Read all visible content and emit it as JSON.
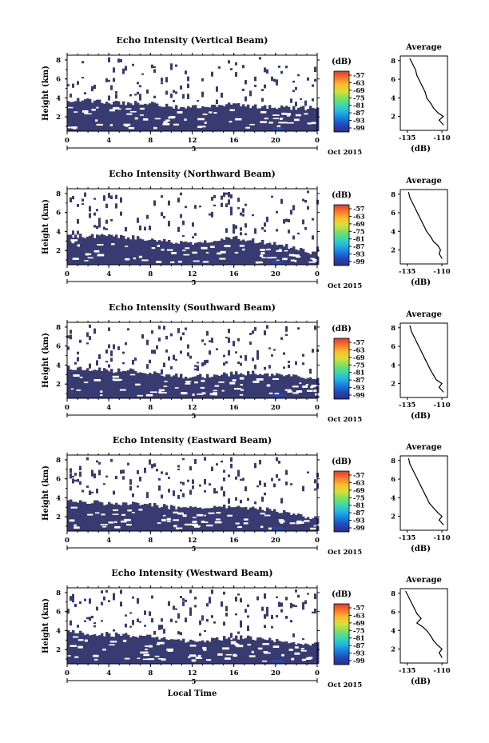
{
  "chart_data": [
    {
      "type": "heatmap",
      "title": "Echo Intensity (Vertical Beam)",
      "ylabel": "Height (km)",
      "x_ticks": [
        "0",
        "4",
        "8",
        "12",
        "16",
        "20",
        "0"
      ],
      "y_ticks": [
        "2",
        "4",
        "6",
        "8"
      ],
      "xlim": [
        0,
        24
      ],
      "ylim": [
        0.5,
        8.5
      ],
      "date_tick": "5",
      "date_label": "Oct 2015",
      "colorbar": {
        "unit": "(dB)",
        "ticks": [
          "-57",
          "-63",
          "-69",
          "-75",
          "-81",
          "-87",
          "-93",
          "-99"
        ]
      },
      "echo_top_km": [
        [
          0,
          3.8
        ],
        [
          2,
          3.7
        ],
        [
          4,
          3.5
        ],
        [
          6,
          3.5
        ],
        [
          8,
          3.4
        ],
        [
          10,
          3.1
        ],
        [
          12,
          3.0
        ],
        [
          14,
          3.2
        ],
        [
          16,
          3.3
        ],
        [
          18,
          3.1
        ],
        [
          20,
          3.0
        ],
        [
          22,
          2.9
        ],
        [
          24,
          3.0
        ]
      ],
      "average_profile": {
        "title": "Average",
        "xlabel": "(dB)",
        "x_ticks": [
          "-135",
          "-110"
        ],
        "y_ticks": [
          "2",
          "4",
          "6",
          "8"
        ],
        "xlim": [
          -140,
          -106
        ],
        "ylim": [
          0.5,
          8.5
        ],
        "points": [
          [
            -133,
            8.2
          ],
          [
            -131,
            7.6
          ],
          [
            -129,
            7.0
          ],
          [
            -128,
            6.4
          ],
          [
            -126,
            5.8
          ],
          [
            -124,
            5.2
          ],
          [
            -122,
            4.6
          ],
          [
            -121,
            4.0
          ],
          [
            -118,
            3.4
          ],
          [
            -116,
            2.9
          ],
          [
            -113,
            2.4
          ],
          [
            -109,
            2.0
          ],
          [
            -112,
            1.6
          ],
          [
            -109,
            1.1
          ]
        ]
      }
    },
    {
      "type": "heatmap",
      "title": "Echo Intensity (Northward Beam)",
      "ylabel": "Height (km)",
      "x_ticks": [
        "0",
        "4",
        "8",
        "12",
        "16",
        "20",
        "0"
      ],
      "y_ticks": [
        "2",
        "4",
        "6",
        "8"
      ],
      "xlim": [
        0,
        24
      ],
      "ylim": [
        0.5,
        8.5
      ],
      "date_tick": "5",
      "date_label": "Oct 2015",
      "colorbar": {
        "unit": "(dB)",
        "ticks": [
          "-57",
          "-63",
          "-69",
          "-75",
          "-81",
          "-87",
          "-93",
          "-99"
        ]
      },
      "echo_top_km": [
        [
          0,
          3.6
        ],
        [
          2,
          3.5
        ],
        [
          4,
          3.5
        ],
        [
          6,
          3.4
        ],
        [
          8,
          3.2
        ],
        [
          10,
          2.9
        ],
        [
          12,
          2.8
        ],
        [
          14,
          3.1
        ],
        [
          16,
          3.3
        ],
        [
          18,
          3.0
        ],
        [
          20,
          2.7
        ],
        [
          22,
          2.2
        ],
        [
          24,
          1.6
        ]
      ],
      "average_profile": {
        "title": "Average",
        "xlabel": "(dB)",
        "x_ticks": [
          "-135",
          "-110"
        ],
        "y_ticks": [
          "2",
          "4",
          "6",
          "8"
        ],
        "xlim": [
          -140,
          -106
        ],
        "ylim": [
          0.5,
          8.5
        ],
        "points": [
          [
            -134,
            8.2
          ],
          [
            -133,
            7.6
          ],
          [
            -131,
            7.0
          ],
          [
            -129,
            6.4
          ],
          [
            -127,
            5.8
          ],
          [
            -125,
            5.2
          ],
          [
            -123,
            4.6
          ],
          [
            -121,
            4.0
          ],
          [
            -118,
            3.4
          ],
          [
            -116,
            2.9
          ],
          [
            -113,
            2.5
          ],
          [
            -111,
            2.0
          ],
          [
            -112,
            1.6
          ],
          [
            -110,
            1.1
          ]
        ]
      }
    },
    {
      "type": "heatmap",
      "title": "Echo Intensity (Southward Beam)",
      "ylabel": "Height (km)",
      "x_ticks": [
        "0",
        "4",
        "8",
        "12",
        "16",
        "20",
        "0"
      ],
      "y_ticks": [
        "2",
        "4",
        "6",
        "8"
      ],
      "xlim": [
        0,
        24
      ],
      "ylim": [
        0.5,
        8.5
      ],
      "date_tick": "5",
      "date_label": "Oct 2015",
      "colorbar": {
        "unit": "(dB)",
        "ticks": [
          "-57",
          "-63",
          "-69",
          "-75",
          "-81",
          "-87",
          "-93",
          "-99"
        ]
      },
      "echo_top_km": [
        [
          0,
          3.7
        ],
        [
          2,
          3.6
        ],
        [
          4,
          3.4
        ],
        [
          6,
          3.4
        ],
        [
          8,
          3.2
        ],
        [
          10,
          2.9
        ],
        [
          12,
          2.8
        ],
        [
          14,
          2.9
        ],
        [
          16,
          3.1
        ],
        [
          18,
          3.2
        ],
        [
          20,
          3.0
        ],
        [
          22,
          2.7
        ],
        [
          24,
          2.4
        ]
      ],
      "average_profile": {
        "title": "Average",
        "xlabel": "(dB)",
        "x_ticks": [
          "-135",
          "-110"
        ],
        "y_ticks": [
          "2",
          "4",
          "6",
          "8"
        ],
        "xlim": [
          -140,
          -106
        ],
        "ylim": [
          0.5,
          8.5
        ],
        "points": [
          [
            -133,
            8.2
          ],
          [
            -132,
            7.6
          ],
          [
            -130,
            7.0
          ],
          [
            -128,
            6.4
          ],
          [
            -126,
            5.8
          ],
          [
            -124,
            5.2
          ],
          [
            -122,
            4.6
          ],
          [
            -120,
            4.0
          ],
          [
            -118,
            3.4
          ],
          [
            -116,
            2.9
          ],
          [
            -114,
            2.4
          ],
          [
            -110,
            2.0
          ],
          [
            -112,
            1.6
          ],
          [
            -109,
            1.1
          ]
        ]
      }
    },
    {
      "type": "heatmap",
      "title": "Echo Intensity (Eastward Beam)",
      "ylabel": "Height (km)",
      "x_ticks": [
        "0",
        "4",
        "8",
        "12",
        "16",
        "20",
        "0"
      ],
      "y_ticks": [
        "2",
        "4",
        "6",
        "8"
      ],
      "xlim": [
        0,
        24
      ],
      "ylim": [
        0.5,
        8.5
      ],
      "date_tick": "5",
      "date_label": "Oct 2015",
      "colorbar": {
        "unit": "(dB)",
        "ticks": [
          "-57",
          "-63",
          "-69",
          "-75",
          "-81",
          "-87",
          "-93",
          "-99"
        ]
      },
      "echo_top_km": [
        [
          0,
          3.8
        ],
        [
          2,
          3.6
        ],
        [
          4,
          3.4
        ],
        [
          6,
          3.4
        ],
        [
          8,
          3.3
        ],
        [
          10,
          3.0
        ],
        [
          12,
          2.9
        ],
        [
          14,
          3.0
        ],
        [
          16,
          3.1
        ],
        [
          18,
          2.9
        ],
        [
          20,
          2.6
        ],
        [
          22,
          2.2
        ],
        [
          24,
          1.8
        ]
      ],
      "average_profile": {
        "title": "Average",
        "xlabel": "(dB)",
        "x_ticks": [
          "-135",
          "-110"
        ],
        "y_ticks": [
          "2",
          "4",
          "6",
          "8"
        ],
        "xlim": [
          -140,
          -106
        ],
        "ylim": [
          0.5,
          8.5
        ],
        "points": [
          [
            -134,
            8.2
          ],
          [
            -133,
            7.6
          ],
          [
            -131,
            7.0
          ],
          [
            -129,
            6.4
          ],
          [
            -127,
            5.8
          ],
          [
            -125,
            5.2
          ],
          [
            -123,
            4.6
          ],
          [
            -121,
            4.0
          ],
          [
            -119,
            3.4
          ],
          [
            -116,
            2.9
          ],
          [
            -113,
            2.4
          ],
          [
            -110,
            2.0
          ],
          [
            -112,
            1.6
          ],
          [
            -109,
            1.1
          ]
        ]
      }
    },
    {
      "type": "heatmap",
      "title": "Echo Intensity (Westward Beam)",
      "ylabel": "Height (km)",
      "xlabel": "Local Time",
      "x_ticks": [
        "0",
        "4",
        "8",
        "12",
        "16",
        "20",
        "0"
      ],
      "y_ticks": [
        "2",
        "4",
        "6",
        "8"
      ],
      "xlim": [
        0,
        24
      ],
      "ylim": [
        0.5,
        8.5
      ],
      "date_tick": "5",
      "date_label": "Oct 2015",
      "colorbar": {
        "unit": "(dB)",
        "ticks": [
          "-57",
          "-63",
          "-69",
          "-75",
          "-81",
          "-87",
          "-93",
          "-99"
        ]
      },
      "echo_top_km": [
        [
          0,
          3.9
        ],
        [
          2,
          3.7
        ],
        [
          4,
          3.6
        ],
        [
          6,
          3.5
        ],
        [
          8,
          3.3
        ],
        [
          10,
          3.0
        ],
        [
          12,
          2.9
        ],
        [
          14,
          3.1
        ],
        [
          16,
          3.3
        ],
        [
          18,
          3.2
        ],
        [
          20,
          3.0
        ],
        [
          22,
          2.7
        ],
        [
          24,
          2.6
        ]
      ],
      "average_profile": {
        "title": "Average",
        "xlabel": "(dB)",
        "x_ticks": [
          "-135",
          "-110"
        ],
        "y_ticks": [
          "2",
          "4",
          "6",
          "8"
        ],
        "xlim": [
          -140,
          -106
        ],
        "ylim": [
          0.5,
          8.5
        ],
        "points": [
          [
            -136,
            8.2
          ],
          [
            -134,
            7.6
          ],
          [
            -132,
            7.0
          ],
          [
            -130,
            6.4
          ],
          [
            -128,
            5.8
          ],
          [
            -125,
            5.3
          ],
          [
            -128,
            4.8
          ],
          [
            -124,
            4.4
          ],
          [
            -121,
            4.0
          ],
          [
            -118,
            3.4
          ],
          [
            -116,
            2.9
          ],
          [
            -113,
            2.4
          ],
          [
            -110,
            2.0
          ],
          [
            -112,
            1.6
          ],
          [
            -110,
            1.1
          ]
        ]
      }
    }
  ],
  "colors": {
    "echo": "#383b72",
    "colorscale": [
      "#2d2f7d",
      "#2446b5",
      "#1c7ae0",
      "#24b4e6",
      "#3ad9b0",
      "#7fe066",
      "#d1e33b",
      "#fbbd2e",
      "#f77a27",
      "#e5362a"
    ]
  }
}
